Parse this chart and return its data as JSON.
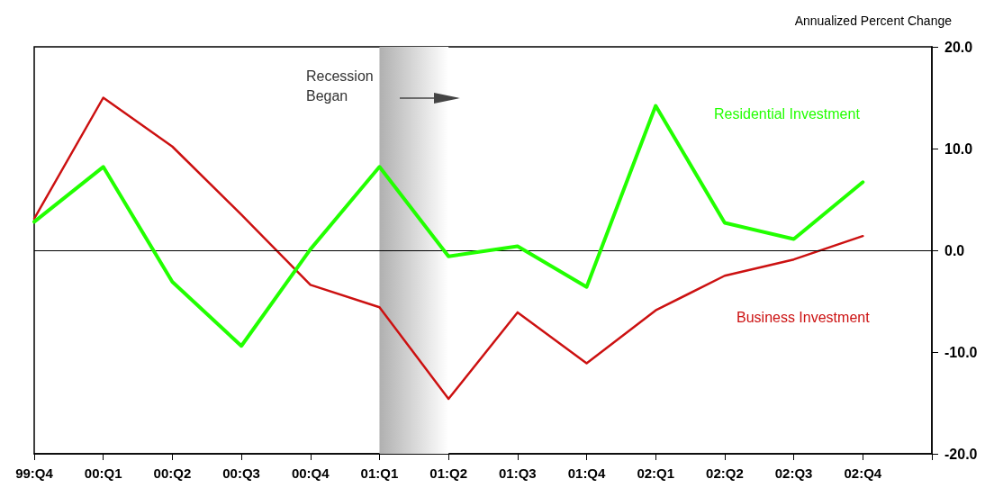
{
  "chart_data": {
    "type": "line",
    "ylabel": "Annualized Percent Change",
    "categories": [
      "99:Q4",
      "00:Q1",
      "00:Q2",
      "00:Q3",
      "00:Q4",
      "01:Q1",
      "01:Q2",
      "01:Q3",
      "01:Q4",
      "02:Q1",
      "02:Q2",
      "02:Q3",
      "02:Q4",
      null
    ],
    "series": [
      {
        "name": "Residential Investment",
        "color": "#22ff00",
        "values": [
          2.8,
          8.2,
          -3.1,
          -9.4,
          0.1,
          8.2,
          -0.6,
          0.4,
          -3.6,
          14.2,
          2.7,
          1.1,
          6.7,
          null
        ]
      },
      {
        "name": "Business Investment",
        "color": "#cc1111",
        "values": [
          3.1,
          15.0,
          10.2,
          3.5,
          -3.4,
          -5.6,
          -14.6,
          -6.1,
          -11.1,
          -5.9,
          -2.5,
          -0.9,
          1.4,
          null
        ]
      }
    ],
    "ylim": [
      -20,
      20
    ],
    "yticks": [
      {
        "value": -20,
        "label": "-20.0"
      },
      {
        "value": -10,
        "label": "-10.0"
      },
      {
        "value": 0,
        "label": "0.0"
      },
      {
        "value": 10,
        "label": "10.0"
      },
      {
        "value": 20,
        "label": "20.0"
      }
    ],
    "ref_lines": [
      {
        "axis": "y",
        "value": 0,
        "color": "#000000"
      }
    ],
    "bands": [
      {
        "axis": "x",
        "from": "01:Q1",
        "to": "01:Q2",
        "color": "#b0b0b0"
      }
    ],
    "annotations": [
      "Recession Began"
    ],
    "grid": false,
    "legend": false,
    "marker": "none",
    "line_style": "solid"
  }
}
